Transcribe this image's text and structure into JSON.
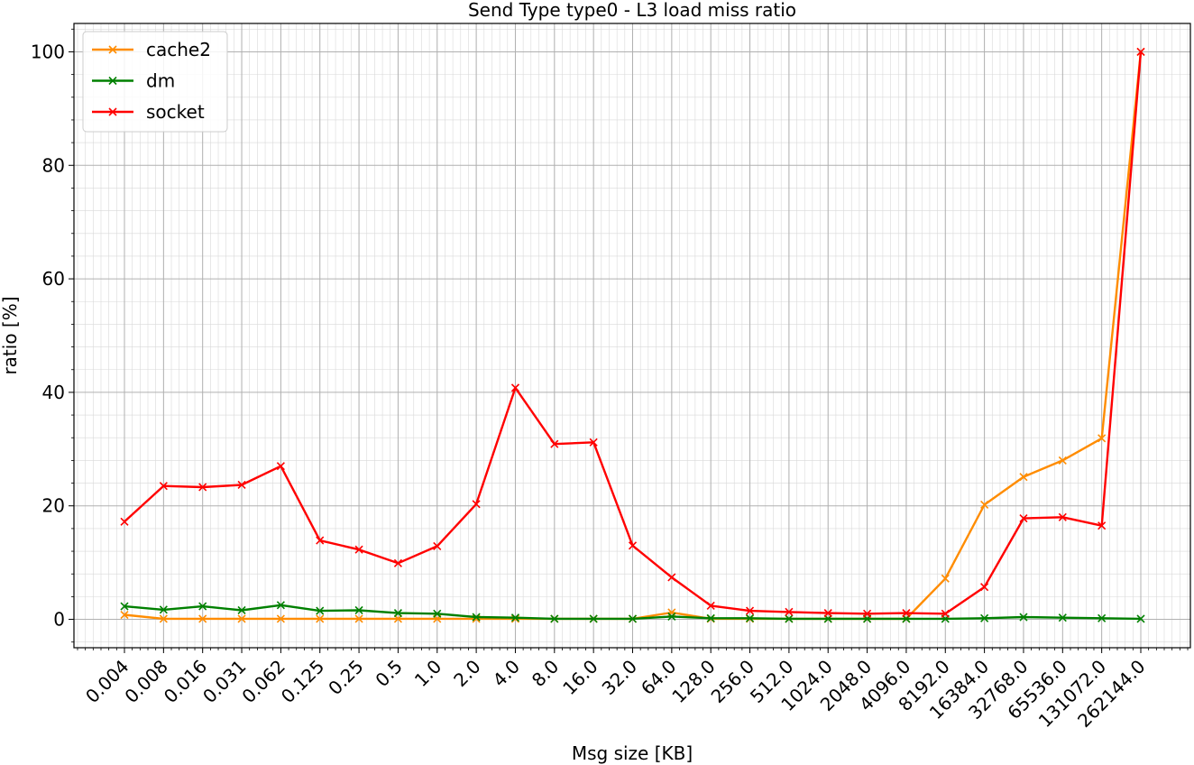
{
  "chart_data": {
    "type": "line",
    "title": "Send Type type0 - L3 load miss ratio",
    "xlabel": "Msg size [KB]",
    "ylabel": "ratio [%]",
    "categories": [
      "0.004",
      "0.008",
      "0.016",
      "0.031",
      "0.062",
      "0.125",
      "0.25",
      "0.5",
      "1.0",
      "2.0",
      "4.0",
      "8.0",
      "16.0",
      "32.0",
      "64.0",
      "128.0",
      "256.0",
      "512.0",
      "1024.0",
      "2048.0",
      "4096.0",
      "8192.0",
      "16384.0",
      "32768.0",
      "65536.0",
      "131072.0",
      "262144.0"
    ],
    "yticks": [
      "0",
      "20",
      "40",
      "60",
      "80",
      "100"
    ],
    "ylim": [
      -5,
      105
    ],
    "grid": true,
    "legend_position": "top-left",
    "series": [
      {
        "name": "cache2",
        "color": "#ff8c00",
        "values": [
          0.8,
          0.1,
          0.1,
          0.1,
          0.1,
          0.1,
          0.1,
          0.1,
          0.1,
          0.1,
          0.1,
          0.1,
          0.1,
          0.1,
          1.2,
          0.1,
          0.1,
          0.1,
          0.1,
          0.1,
          0.1,
          7.2,
          20.2,
          25.1,
          28.0,
          31.9,
          100.0
        ]
      },
      {
        "name": "dm",
        "color": "#008000",
        "values": [
          2.3,
          1.7,
          2.3,
          1.6,
          2.5,
          1.5,
          1.6,
          1.1,
          1.0,
          0.4,
          0.3,
          0.1,
          0.1,
          0.1,
          0.5,
          0.2,
          0.2,
          0.1,
          0.1,
          0.1,
          0.1,
          0.1,
          0.2,
          0.4,
          0.3,
          0.2,
          0.1
        ]
      },
      {
        "name": "socket",
        "color": "#ff0000",
        "values": [
          17.2,
          23.5,
          23.3,
          23.7,
          27.0,
          13.9,
          12.3,
          9.9,
          12.9,
          20.3,
          40.8,
          30.9,
          31.2,
          13.0,
          7.4,
          2.4,
          1.5,
          1.3,
          1.1,
          1.0,
          1.1,
          1.0,
          5.7,
          17.8,
          18.0,
          16.5,
          100.0
        ]
      }
    ]
  }
}
